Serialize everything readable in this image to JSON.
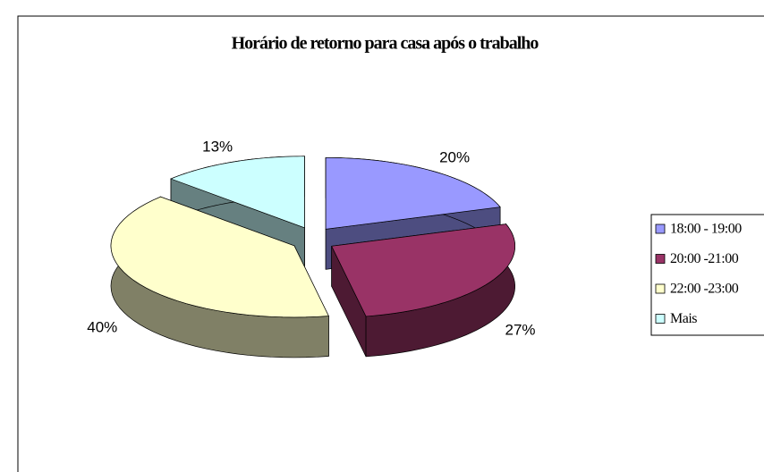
{
  "chart_data": {
    "type": "pie3d",
    "title": "Horário de retorno para casa após o trabalho",
    "categories": [
      "18:00 - 19:00",
      "20:00 -21:00",
      "22:00 -23:00",
      "Mais"
    ],
    "values": [
      20,
      27,
      40,
      13
    ],
    "value_labels": [
      "20%",
      "27%",
      "40%",
      "13%"
    ],
    "colors": [
      "#9999ff",
      "#993366",
      "#ffffcc",
      "#ccffff"
    ],
    "legend": "right"
  }
}
